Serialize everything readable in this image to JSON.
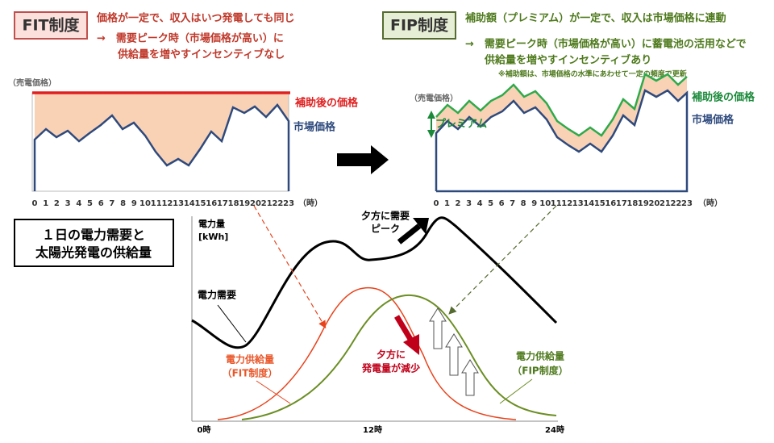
{
  "fit": {
    "badge": "FIT制度",
    "line1": "価格が一定で、収入はいつ発電しても同じ",
    "line2": "→　需要ピーク時（市場価格が高い）に",
    "line3": "供給量を増やすインセンティブなし",
    "chart": {
      "ylabel": "（売電価格）",
      "hours": [
        0,
        1,
        2,
        3,
        4,
        5,
        6,
        7,
        8,
        9,
        10,
        11,
        12,
        13,
        14,
        15,
        16,
        17,
        18,
        19,
        20,
        21,
        22,
        23
      ],
      "xunit": "（時）",
      "subsidized_label": "補助後の価格",
      "market_label": "市場価格"
    }
  },
  "fip": {
    "badge": "FIP制度",
    "line1": "補助額（プレミアム）が一定で、収入は市場価格に連動",
    "line2": "→　需要ピーク時（市場価格が高い）に蓄電池の活用などで",
    "line3": "供給量を増やすインセンティブあり",
    "note": "※補助額は、市場価格の水準にあわせて一定の頻度で更新",
    "chart": {
      "ylabel": "（売電価格）",
      "hours": [
        0,
        1,
        2,
        3,
        4,
        5,
        6,
        7,
        8,
        9,
        10,
        11,
        12,
        13,
        14,
        15,
        16,
        17,
        18,
        19,
        20,
        21,
        22,
        23
      ],
      "xunit": "（時）",
      "subsidized_label": "補助後の価格",
      "market_label": "市場価格",
      "premium_label": "プレミアム"
    }
  },
  "demand": {
    "title1": "１日の電力需要と",
    "title2": "太陽光発電の供給量",
    "ylabel1": "電力量",
    "ylabel2": "[kWh]",
    "demand_label": "電力需要",
    "fit_label1": "電力供給量",
    "fit_label2": "（FIT制度）",
    "fip_label1": "電力供給量",
    "fip_label2": "（FIP制度）",
    "peak1": "夕方に需要",
    "peak2": "ピーク",
    "drop1": "夕方に",
    "drop2": "発電量が減少",
    "x_labels": [
      "0時",
      "12時",
      "24時"
    ]
  }
}
